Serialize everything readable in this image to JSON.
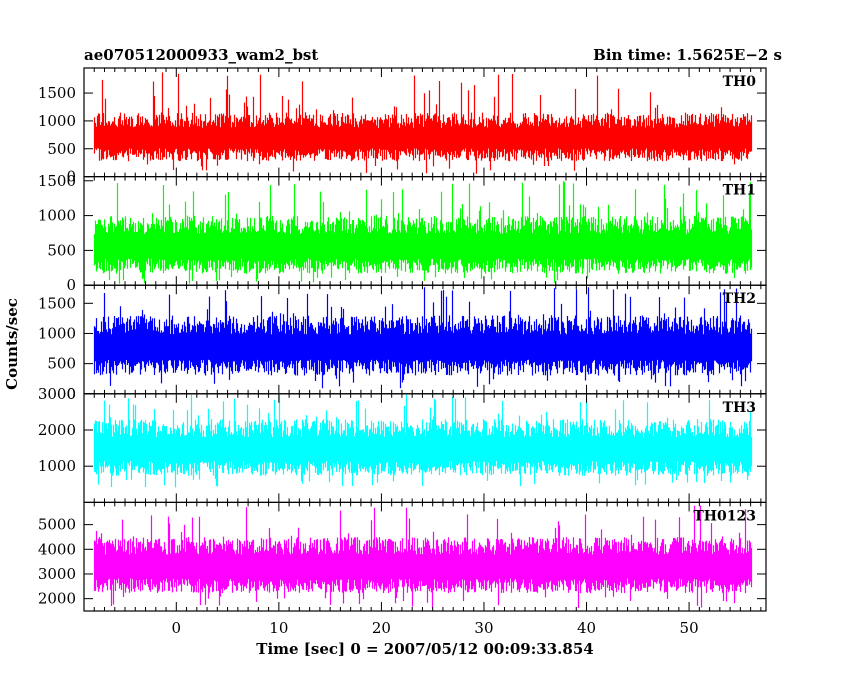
{
  "chart_data": {
    "type": "line",
    "title": "ae070512000933_wam2_bst",
    "subtitle": "Bin time: 1.5625E−2 s",
    "xlabel": "Time [sec] 0 = 2007/05/12 00:09:33.854",
    "ylabel": "Counts/sec",
    "xlim": [
      -9,
      57.5
    ],
    "x_ticks": [
      0,
      10,
      20,
      30,
      40,
      50
    ],
    "x_data_range": [
      -8,
      56
    ],
    "grid": false,
    "panels": [
      {
        "name": "TH0",
        "color": "#ff0000",
        "ylim": [
          0,
          1950
        ],
        "y_ticks": [
          0,
          500,
          1000,
          1500
        ],
        "typical_range": [
          230,
          1150
        ],
        "spike_max": 1880,
        "dip_min": 50
      },
      {
        "name": "TH1",
        "color": "#00ff00",
        "ylim": [
          0,
          1560
        ],
        "y_ticks": [
          0,
          500,
          1000,
          1500
        ],
        "typical_range": [
          120,
          1000
        ],
        "spike_max": 1500,
        "dip_min": 20
      },
      {
        "name": "TH2",
        "color": "#0000ff",
        "ylim": [
          0,
          1800
        ],
        "y_ticks": [
          0,
          500,
          1000,
          1500
        ],
        "typical_range": [
          250,
          1300
        ],
        "spike_max": 1780,
        "dip_min": 80
      },
      {
        "name": "TH3",
        "color": "#00ffff",
        "ylim": [
          0,
          3000
        ],
        "y_ticks": [
          1000,
          2000,
          3000
        ],
        "typical_range": [
          650,
          2300
        ],
        "spike_max": 2990,
        "dip_min": 400
      },
      {
        "name": "TH0123",
        "color": "#ff00ff",
        "ylim": [
          1500,
          5900
        ],
        "y_ticks": [
          2000,
          3000,
          4000,
          5000
        ],
        "typical_range": [
          2100,
          4500
        ],
        "spike_max": 5800,
        "dip_min": 1600
      }
    ]
  }
}
